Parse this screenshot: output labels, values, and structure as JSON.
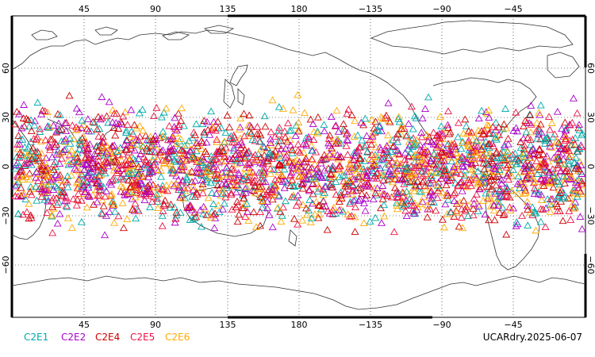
{
  "map": {
    "top_lon_labels": [
      "45",
      "90",
      "135",
      "180",
      "−135",
      "−90",
      "−45"
    ],
    "bottom_lon_labels": [
      "45",
      "90",
      "135",
      "180",
      "−135",
      "−90",
      "−45"
    ],
    "left_lat_labels": [
      "60",
      "30",
      "0",
      "−30",
      "−60"
    ],
    "right_lat_labels": [
      "60",
      "30",
      "0",
      "−30",
      "−60"
    ],
    "lat_range": [
      -90,
      90
    ],
    "grid": "dotted"
  },
  "legend": [
    {
      "name": "C2E1",
      "color": "#00aaaa"
    },
    {
      "name": "C2E2",
      "color": "#aa00cc"
    },
    {
      "name": "C2E4",
      "color": "#cc0000"
    },
    {
      "name": "C2E5",
      "color": "#ee1144"
    },
    {
      "name": "C2E6",
      "color": "#ffaa00"
    }
  ],
  "footer": {
    "product_date": "UCARdry.2025-06-07"
  },
  "observations": {
    "marker": "open-triangle",
    "lat_min": -45,
    "lat_max": 45,
    "series_colors": [
      "#00aaaa",
      "#aa00cc",
      "#cc0000",
      "#ee1144",
      "#ffaa00"
    ]
  }
}
